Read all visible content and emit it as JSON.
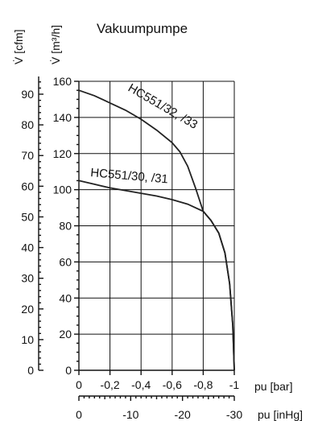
{
  "chart_data": {
    "type": "line",
    "title": "Vakuumpumpe",
    "x_primary": {
      "label": "pu [bar]",
      "range": [
        0,
        -1
      ],
      "ticks": [
        "0",
        "-0,2",
        "-0,4",
        "-0,6",
        "-0,8",
        "-1"
      ],
      "tick_values": [
        0,
        -0.2,
        -0.4,
        -0.6,
        -0.8,
        -1
      ]
    },
    "x_secondary": {
      "label": "pu [inHg]",
      "range": [
        0,
        -30
      ],
      "ticks": [
        "0",
        "-10",
        "-20",
        "-30"
      ],
      "tick_values": [
        0,
        -10,
        -20,
        -30
      ]
    },
    "y_primary": {
      "label": "V̇ [m³/h]",
      "range": [
        0,
        160
      ],
      "ticks": [
        "0",
        "20",
        "40",
        "60",
        "80",
        "100",
        "120",
        "140",
        "160"
      ],
      "tick_values": [
        0,
        20,
        40,
        60,
        80,
        100,
        120,
        140,
        160
      ]
    },
    "y_secondary": {
      "label": "V̇ [cfm]",
      "range": [
        0,
        94.2
      ],
      "ticks": [
        "0",
        "10",
        "20",
        "30",
        "40",
        "50",
        "60",
        "70",
        "80",
        "90"
      ],
      "tick_values": [
        0,
        10,
        20,
        30,
        40,
        50,
        60,
        70,
        80,
        90
      ]
    },
    "grid": true,
    "series": [
      {
        "name": "HC551/32, /33",
        "x": [
          0,
          -0.1,
          -0.2,
          -0.3,
          -0.4,
          -0.5,
          -0.6,
          -0.65,
          -0.7,
          -0.75,
          -0.8,
          -0.85,
          -0.9,
          -0.94,
          -0.97,
          -0.99,
          -1.0
        ],
        "y": [
          155,
          152,
          148,
          144,
          139,
          133,
          126,
          121,
          113,
          101,
          88,
          83,
          76,
          65,
          48,
          25,
          0
        ]
      },
      {
        "name": "HC551/30, /31",
        "x": [
          0,
          -0.1,
          -0.2,
          -0.3,
          -0.4,
          -0.5,
          -0.6,
          -0.7,
          -0.8,
          -0.85,
          -0.9,
          -0.94,
          -0.97,
          -0.99,
          -1.0
        ],
        "y": [
          105,
          103,
          101,
          99.5,
          98,
          96.5,
          94.5,
          92,
          88,
          83,
          76,
          65,
          48,
          25,
          0
        ]
      }
    ]
  }
}
